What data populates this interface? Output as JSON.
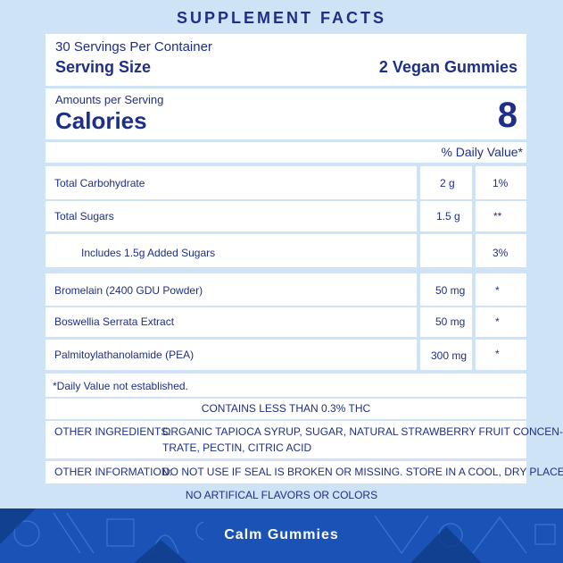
{
  "title": "SUPPLEMENT FACTS",
  "servings": {
    "per_container": "30 Servings Per Container",
    "size_label": "Serving Size",
    "size_value": "2 Vegan Gummies"
  },
  "calories": {
    "amount_label": "Amounts per Serving",
    "label": "Calories",
    "value": "8"
  },
  "dv_header": "% Daily Value*",
  "nutrients": [
    {
      "name": "Total Carbohydrate",
      "amount": "2 g",
      "dv": "1%"
    },
    {
      "name": "Total Sugars",
      "amount": "1.5 g",
      "dv": "**"
    },
    {
      "name": "Includes 1.5g Added Sugars",
      "amount": "",
      "dv": "3%"
    }
  ],
  "ingredients": [
    {
      "name": "Bromelain (2400 GDU Powder)",
      "amount": "50 mg",
      "dv": "*"
    },
    {
      "name": "Boswellia Serrata Extract",
      "amount": "50 mg",
      "dv": "*"
    },
    {
      "name": "Palmitoylathanolamide (PEA)",
      "amount": "300 mg",
      "dv": "*"
    }
  ],
  "footnote": "*Daily Value not established.",
  "thc_note": "CONTAINS LESS THAN 0.3% THC",
  "other_ingredients": {
    "label": "OTHER INGREDIENTS:",
    "line1": "ORGANIC TAPIOCA SYRUP, SUGAR, NATURAL STRAWBERRY FRUIT CONCEN-",
    "line2": "TRATE, PECTIN, CITRIC ACID"
  },
  "other_information": {
    "label": "OTHER INFORMATION:",
    "text": "DO NOT USE IF SEAL IS BROKEN OR MISSING. STORE IN A COOL, DRY PLACE."
  },
  "no_artificial": "NO ARTIFICAL FLAVORS OR COLORS",
  "product_name": "Calm Gummies",
  "colors": {
    "background": "#cfe3f7",
    "text": "#1d2f86",
    "banner": "#1a52b6"
  }
}
